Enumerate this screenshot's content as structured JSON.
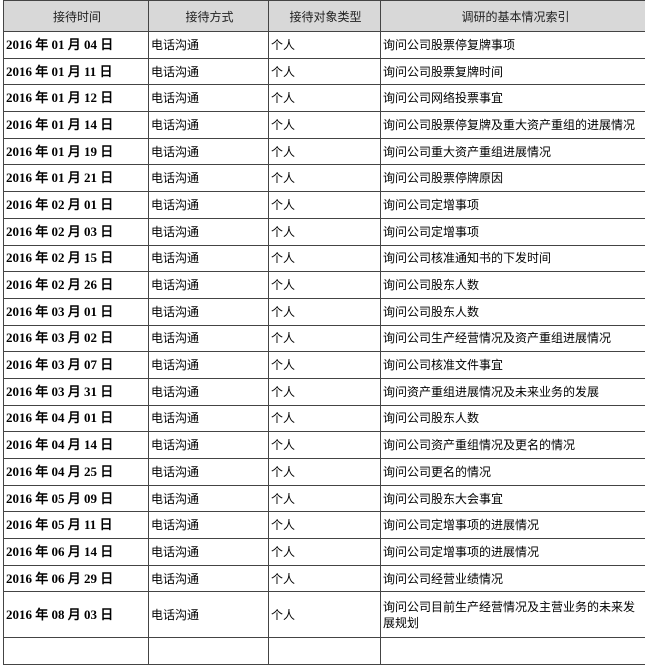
{
  "headers": [
    "接待时间",
    "接待方式",
    "接待对象类型",
    "调研的基本情况索引"
  ],
  "rows": [
    [
      "2016 年 01 月 04 日",
      "电话沟通",
      "个人",
      "询问公司股票停复牌事项"
    ],
    [
      "2016 年 01 月 11 日",
      "电话沟通",
      "个人",
      "询问公司股票复牌时间"
    ],
    [
      "2016 年 01 月 12 日",
      "电话沟通",
      "个人",
      "询问公司网络投票事宜"
    ],
    [
      "2016 年 01 月 14 日",
      "电话沟通",
      "个人",
      "询问公司股票停复牌及重大资产重组的进展情况"
    ],
    [
      "2016 年 01 月 19 日",
      "电话沟通",
      "个人",
      "询问公司重大资产重组进展情况"
    ],
    [
      "2016 年 01 月 21 日",
      "电话沟通",
      "个人",
      "询问公司股票停牌原因"
    ],
    [
      "2016 年 02 月 01 日",
      "电话沟通",
      "个人",
      "询问公司定增事项"
    ],
    [
      "2016 年 02 月 03 日",
      "电话沟通",
      "个人",
      "询问公司定增事项"
    ],
    [
      "2016 年 02 月 15 日",
      "电话沟通",
      "个人",
      "询问公司核准通知书的下发时间"
    ],
    [
      "2016 年 02 月 26 日",
      "电话沟通",
      "个人",
      "询问公司股东人数"
    ],
    [
      "2016 年 03 月 01 日",
      "电话沟通",
      "个人",
      "询问公司股东人数"
    ],
    [
      "2016 年 03 月 02 日",
      "电话沟通",
      "个人",
      "询问公司生产经营情况及资产重组进展情况"
    ],
    [
      "2016 年 03 月 07 日",
      "电话沟通",
      "个人",
      "询问公司核准文件事宜"
    ],
    [
      "2016 年 03 月 31 日",
      "电话沟通",
      "个人",
      "询问资产重组进展情况及未来业务的发展"
    ],
    [
      "2016 年 04 月 01 日",
      "电话沟通",
      "个人",
      "询问公司股东人数"
    ],
    [
      "2016 年 04 月 14 日",
      "电话沟通",
      "个人",
      "询问公司资产重组情况及更名的情况"
    ],
    [
      "2016 年 04 月 25 日",
      "电话沟通",
      "个人",
      "询问公司更名的情况"
    ],
    [
      "2016 年 05 月 09 日",
      "电话沟通",
      "个人",
      "询问公司股东大会事宜"
    ],
    [
      "2016 年 05 月 11 日",
      "电话沟通",
      "个人",
      "询问公司定增事项的进展情况"
    ],
    [
      "2016 年 06 月 14 日",
      "电话沟通",
      "个人",
      "询问公司定增事项的进展情况"
    ],
    [
      "2016 年 06 月 29 日",
      "电话沟通",
      "个人",
      "询问公司经营业绩情况"
    ],
    [
      "2016 年 08 月 03 日",
      "电话沟通",
      "个人",
      "询问公司目前生产经营情况及主营业务的未来发展规划"
    ]
  ]
}
